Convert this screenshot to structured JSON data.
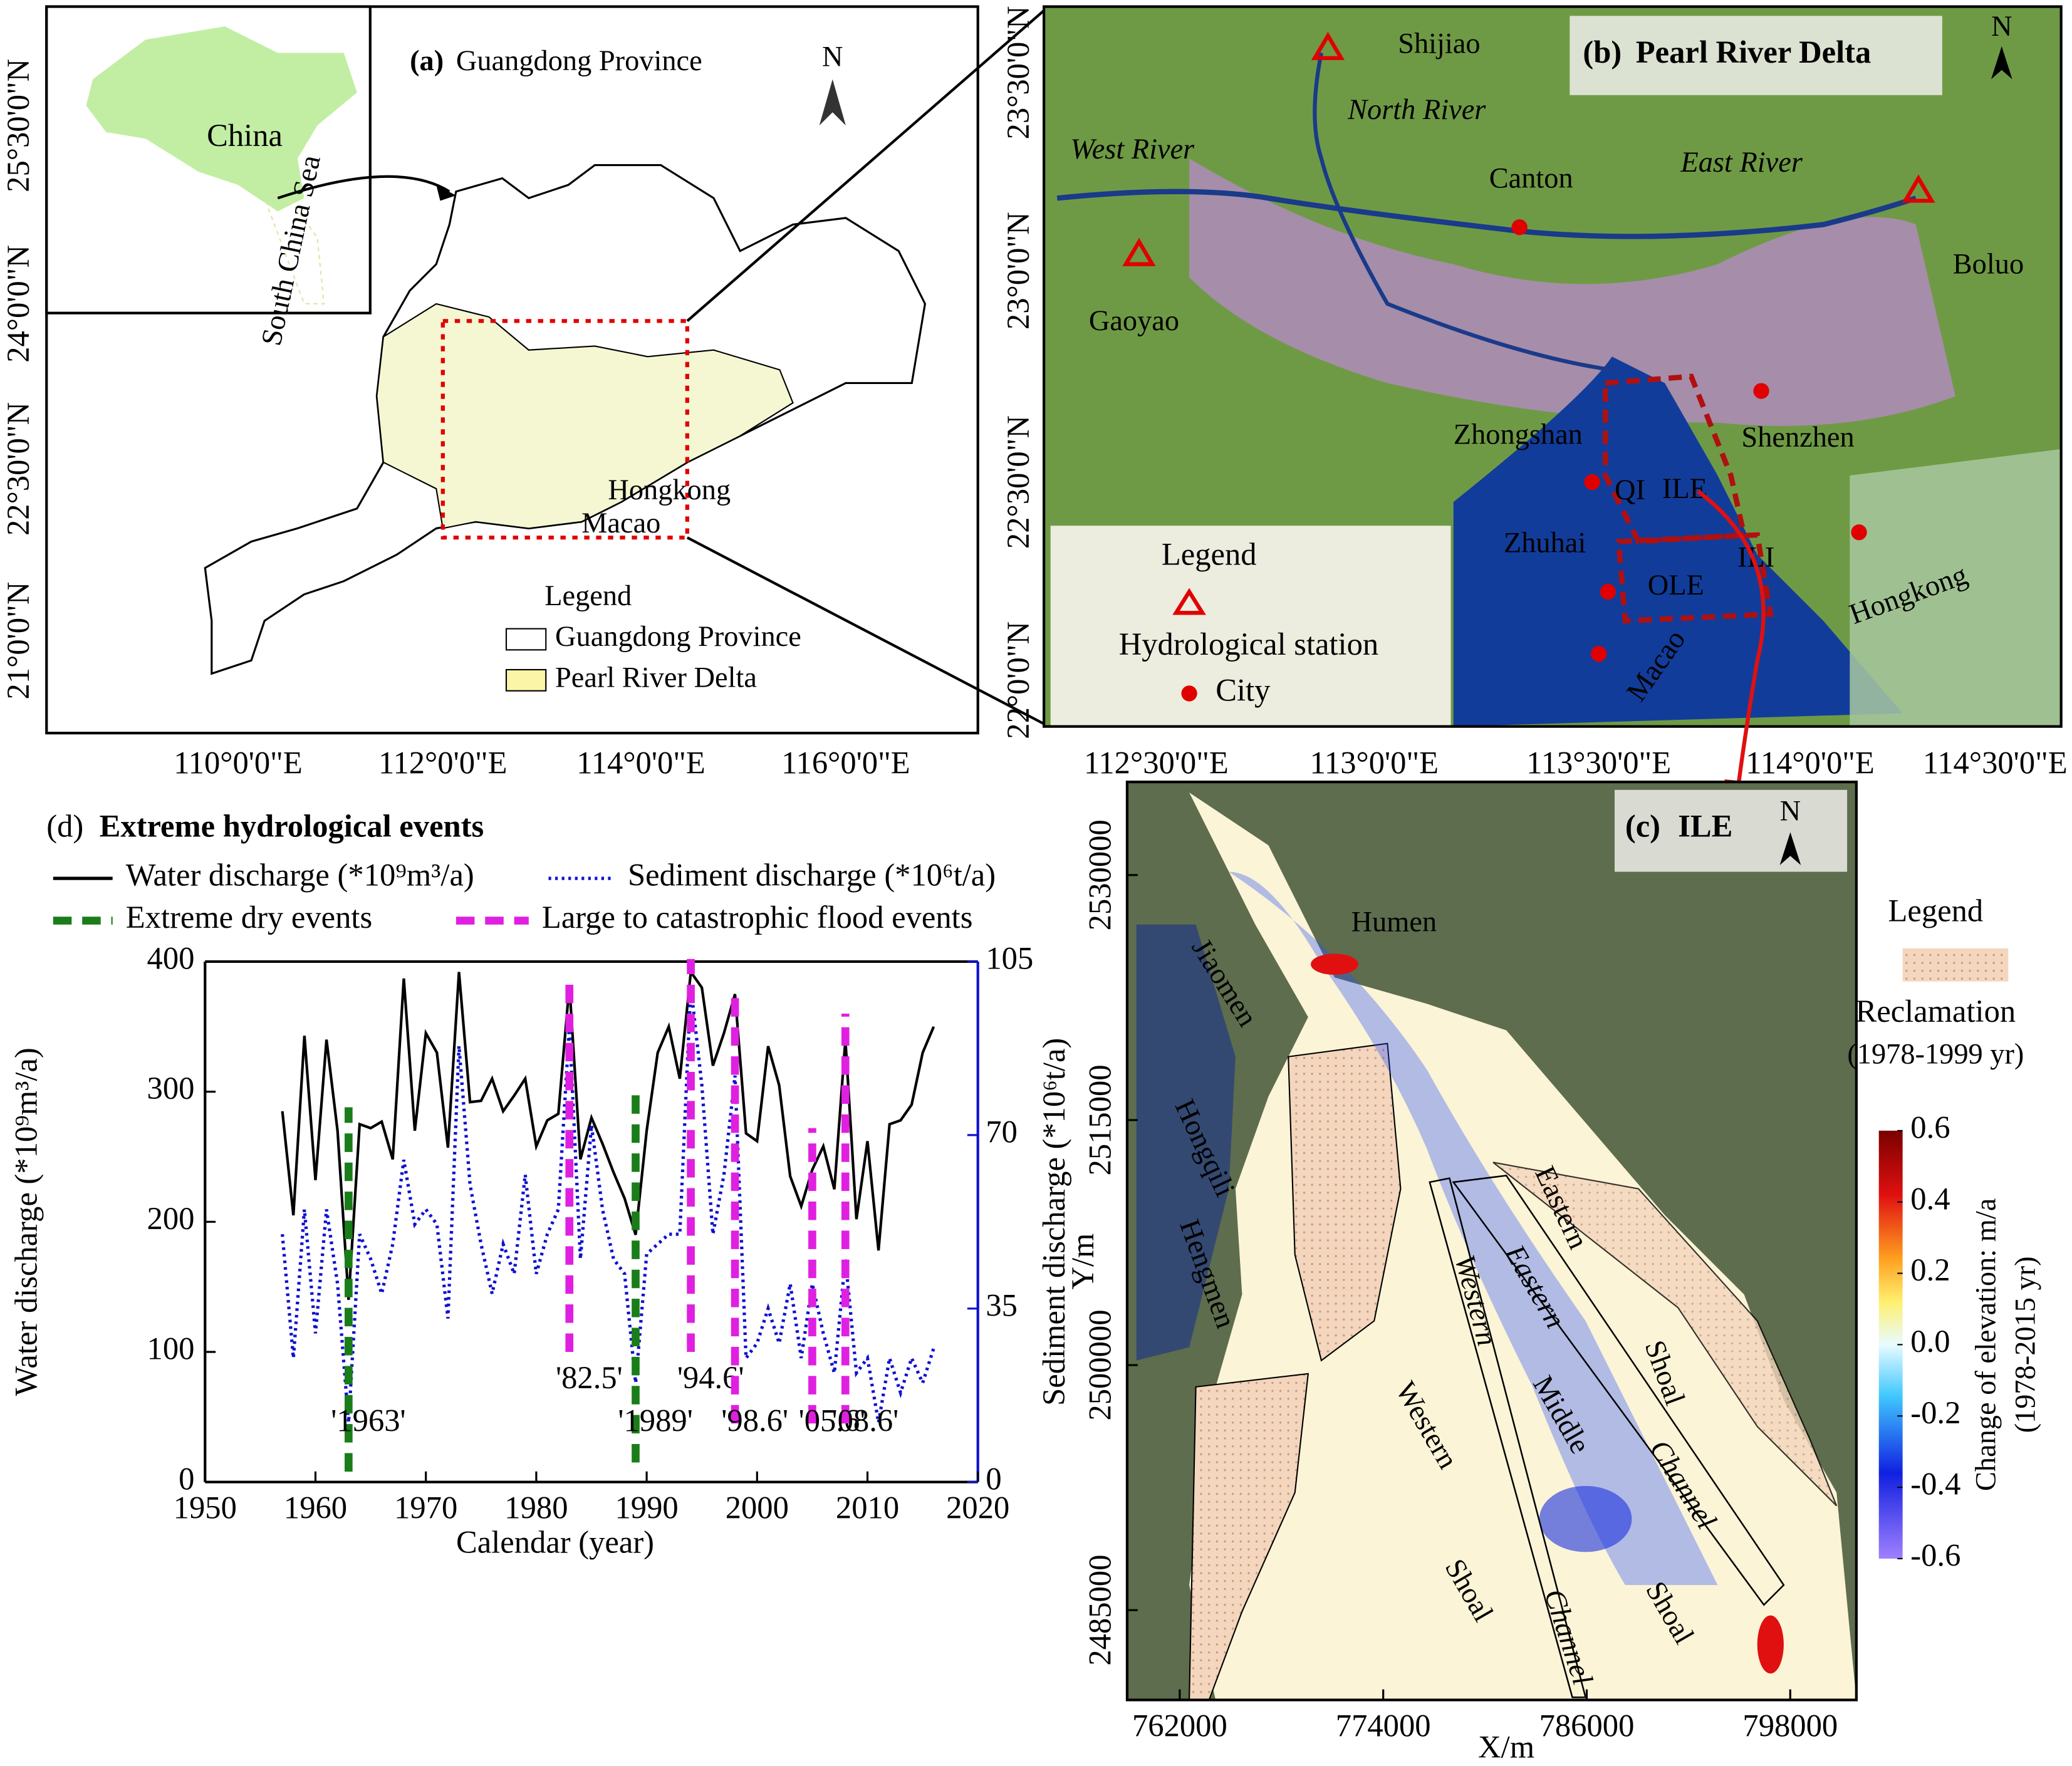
{
  "panel_a": {
    "label": "(a)",
    "title": "Guangdong Province",
    "north": "N",
    "inset_label": "China",
    "inset_sea": "South China Sea",
    "places": [
      "Hongkong",
      "Macao"
    ],
    "legend": {
      "title": "Legend",
      "items": [
        "Guangdong Province",
        "Pearl River Delta"
      ]
    },
    "lat_labels": [
      "25°30'0\"N",
      "24°0'0\"N",
      "22°30'0\"N",
      "21°0'0\"N"
    ],
    "lon_labels": [
      "110°0'0\"E",
      "112°0'0\"E",
      "114°0'0\"E",
      "116°0'0\"E"
    ]
  },
  "panel_b": {
    "label": "(b)",
    "title": "Pearl River Delta",
    "north": "N",
    "places": [
      "Shijiao",
      "North River",
      "West River",
      "Canton",
      "East River",
      "Boluo",
      "Gaoyao",
      "Zhongshan",
      "Shenzhen",
      "QI",
      "ILE",
      "Zhuhai",
      "ILI",
      "OLE",
      "Hongkong",
      "Macao"
    ],
    "legend": {
      "title": "Legend",
      "items": [
        "Hydrological station",
        "City"
      ]
    },
    "lat_labels": [
      "23°30'0\"N",
      "23°0'0\"N",
      "22°30'0\"N",
      "22°0'0\"N"
    ],
    "lon_labels": [
      "112°30'0\"E",
      "113°0'0\"E",
      "113°30'0\"E",
      "114°0'0\"E",
      "114°30'0\"E"
    ]
  },
  "panel_c": {
    "label": "(c)",
    "title": "ILE",
    "north": "N",
    "xlabel": "X/m",
    "ylabel": "Y/m",
    "xlim": [
      758900,
      801900
    ],
    "ylim": [
      2479500,
      2535700
    ],
    "xticks": [
      762000,
      774000,
      786000,
      798000
    ],
    "yticks": [
      2530000,
      2515000,
      2500000,
      2485000
    ],
    "places": [
      "Humen",
      "Jiaomen",
      "Hongqili",
      "Hengmen",
      "Eastern",
      "Shoal",
      "Western",
      "Middle",
      "Western",
      "Eastern",
      "Channel",
      "Channel",
      "Shoal",
      "Shoal"
    ],
    "legend": {
      "title": "Legend",
      "items": [
        "Reclamation",
        "(1978-1999 yr)"
      ]
    },
    "colorbar": {
      "label": "Change of elevation: m/a",
      "sublabel": "(1978-2015 yr)",
      "lim": [
        -0.6,
        0.6
      ],
      "ticks": [
        0.6,
        0.4,
        0.2,
        {
          "value": 0,
          "label": "0.0"
        },
        -0.2,
        -0.4,
        -0.6
      ]
    }
  },
  "chart_data": {
    "type": "line",
    "label": "(d)",
    "title": "Extreme hydrological events",
    "xlabel": "Calendar (year)",
    "ylabel": "Water discharge (*10⁹m³/a)",
    "y2label": "Sediment discharge (*10⁶t/a)",
    "x": [
      1957,
      1958,
      1959,
      1960,
      1961,
      1962,
      1963,
      1964,
      1965,
      1966,
      1967,
      1968,
      1969,
      1970,
      1971,
      1972,
      1973,
      1974,
      1975,
      1976,
      1977,
      1978,
      1979,
      1980,
      1981,
      1982,
      1983,
      1984,
      1985,
      1986,
      1987,
      1988,
      1989,
      1990,
      1991,
      1992,
      1993,
      1994,
      1995,
      1996,
      1997,
      1998,
      1999,
      2000,
      2001,
      2002,
      2003,
      2004,
      2005,
      2006,
      2007,
      2008,
      2009,
      2010,
      2011,
      2012,
      2013,
      2014,
      2015,
      2016
    ],
    "series": [
      {
        "name": "Water discharge (*10⁹m³/a)",
        "color": "#000000",
        "values": [
          285,
          205,
          343,
          232,
          340,
          270,
          140,
          275,
          272,
          277,
          248,
          387,
          270,
          345,
          330,
          257,
          392,
          292,
          293,
          310,
          285,
          297,
          310,
          258,
          278,
          283,
          382,
          248,
          280,
          260,
          238,
          218,
          190,
          270,
          330,
          350,
          310,
          392,
          380,
          320,
          345,
          375,
          268,
          262,
          335,
          305,
          235,
          212,
          240,
          258,
          225,
          340,
          202,
          262,
          178,
          275,
          278,
          290,
          330,
          350
        ]
      },
      {
        "name": "Sediment discharge (*10⁶t/a)",
        "color": "#1010d0",
        "axis": "y2",
        "values": [
          50,
          25,
          55,
          30,
          55,
          40,
          12,
          50,
          45,
          38,
          48,
          65,
          52,
          55,
          52,
          33,
          88,
          60,
          48,
          38,
          48,
          42,
          62,
          42,
          50,
          55,
          92,
          45,
          72,
          55,
          45,
          42,
          20,
          46,
          48,
          50,
          50,
          100,
          80,
          50,
          62,
          82,
          25,
          28,
          35,
          28,
          40,
          25,
          40,
          30,
          22,
          45,
          22,
          25,
          12,
          25,
          18,
          25,
          20,
          27
        ]
      }
    ],
    "events": [
      {
        "name": "Extreme dry events",
        "color": "#1a7d1a",
        "items": [
          {
            "x": 1963,
            "low": 8,
            "high": 288,
            "label": "'1963'"
          },
          {
            "x": 1989,
            "low": 15,
            "high": 305,
            "label": "'1989'"
          }
        ]
      },
      {
        "name": "Large to catastrophic flood events",
        "color": "#e020e0",
        "items": [
          {
            "x": 1983,
            "low": 100,
            "high": 385,
            "label": "'82.5'"
          },
          {
            "x": 1994,
            "low": 100,
            "high": 402,
            "label": "'94.6'"
          },
          {
            "x": 1998,
            "low": 45,
            "high": 375,
            "label": "'98.6'"
          },
          {
            "x": 2005,
            "low": 45,
            "high": 272,
            "label": "'05.6'"
          },
          {
            "x": 2008,
            "low": 45,
            "high": 360,
            "label": "'08.6'"
          }
        ]
      }
    ],
    "xlim": [
      1950,
      2020
    ],
    "xticks": [
      1950,
      1960,
      1970,
      1980,
      1990,
      2000,
      2010,
      2020
    ],
    "ylim": [
      0,
      400
    ],
    "yticks": [
      0,
      100,
      200,
      300,
      400
    ],
    "y2lim": [
      0,
      105
    ],
    "y2ticks": [
      0,
      35,
      70,
      105
    ]
  }
}
